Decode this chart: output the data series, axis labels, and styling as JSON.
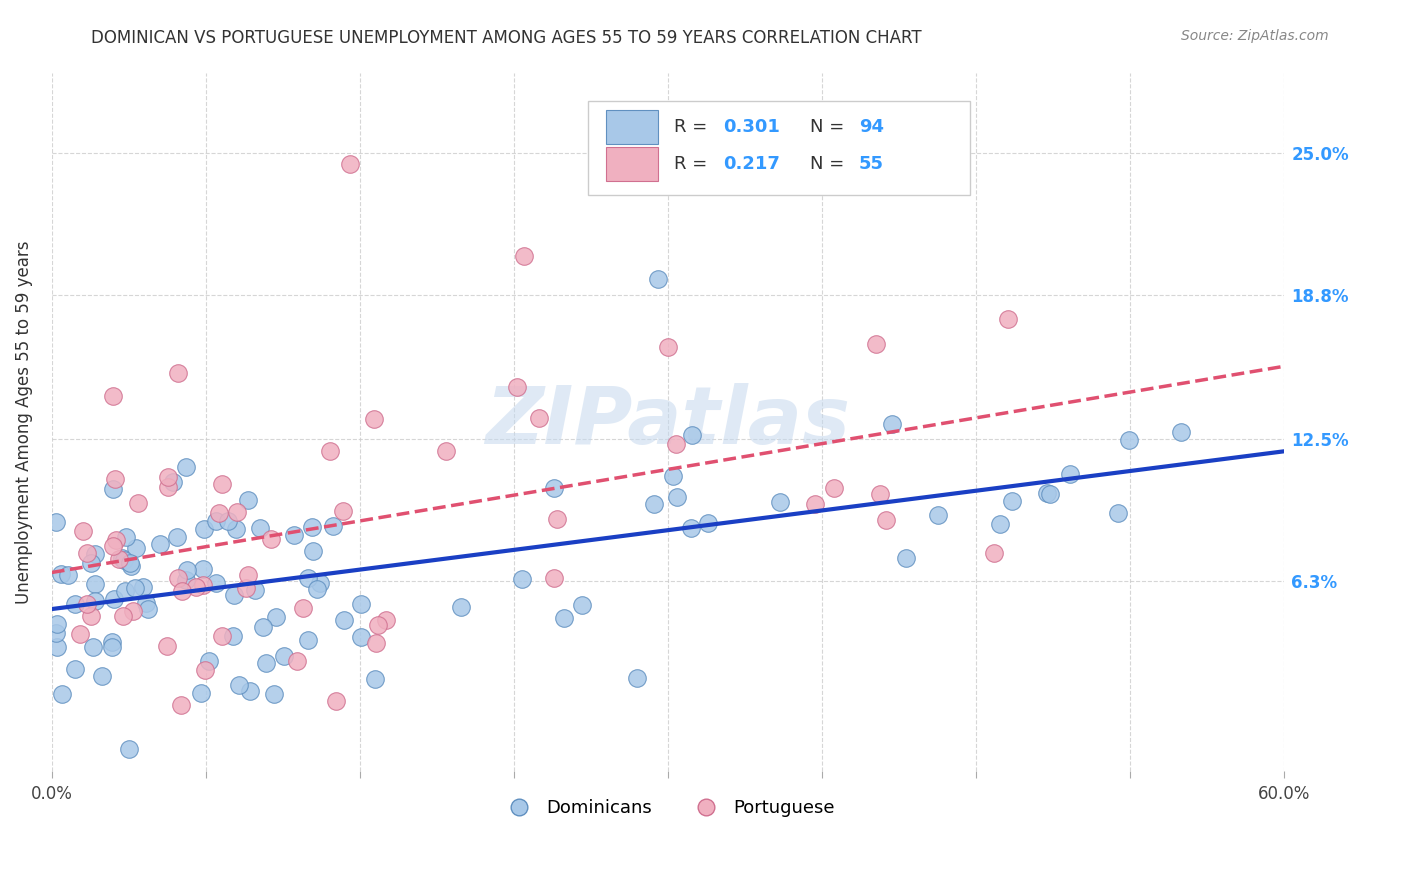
{
  "title": "DOMINICAN VS PORTUGUESE UNEMPLOYMENT AMONG AGES 55 TO 59 YEARS CORRELATION CHART",
  "source": "Source: ZipAtlas.com",
  "ylabel": "Unemployment Among Ages 55 to 59 years",
  "xlim": [
    0.0,
    0.6
  ],
  "ylim": [
    -0.02,
    0.285
  ],
  "xticks": [
    0.0,
    0.075,
    0.15,
    0.225,
    0.3,
    0.375,
    0.45,
    0.525,
    0.6
  ],
  "xticklabels": [
    "0.0%",
    "",
    "",
    "",
    "",
    "",
    "",
    "",
    "60.0%"
  ],
  "ytick_positions": [
    0.063,
    0.125,
    0.188,
    0.25
  ],
  "ytick_labels": [
    "6.3%",
    "12.5%",
    "18.8%",
    "25.0%"
  ],
  "dominican_color": "#a8c8e8",
  "dominican_edge": "#6090c0",
  "portuguese_color": "#f0b0c0",
  "portuguese_edge": "#d07090",
  "line_dom_color": "#1a3fc4",
  "line_por_color": "#e05070",
  "watermark": "ZIPatlas",
  "background": "#ffffff",
  "grid_color": "#cccccc",
  "title_color": "#333333",
  "right_label_color": "#3399ff",
  "legend_dom_label": "Dominicans",
  "legend_por_label": "Portuguese",
  "legend_text_color": "#333333",
  "legend_val_color": "#3399ff",
  "dom_R_text": "0.301",
  "dom_N_text": "94",
  "por_R_text": "0.217",
  "por_N_text": "55"
}
